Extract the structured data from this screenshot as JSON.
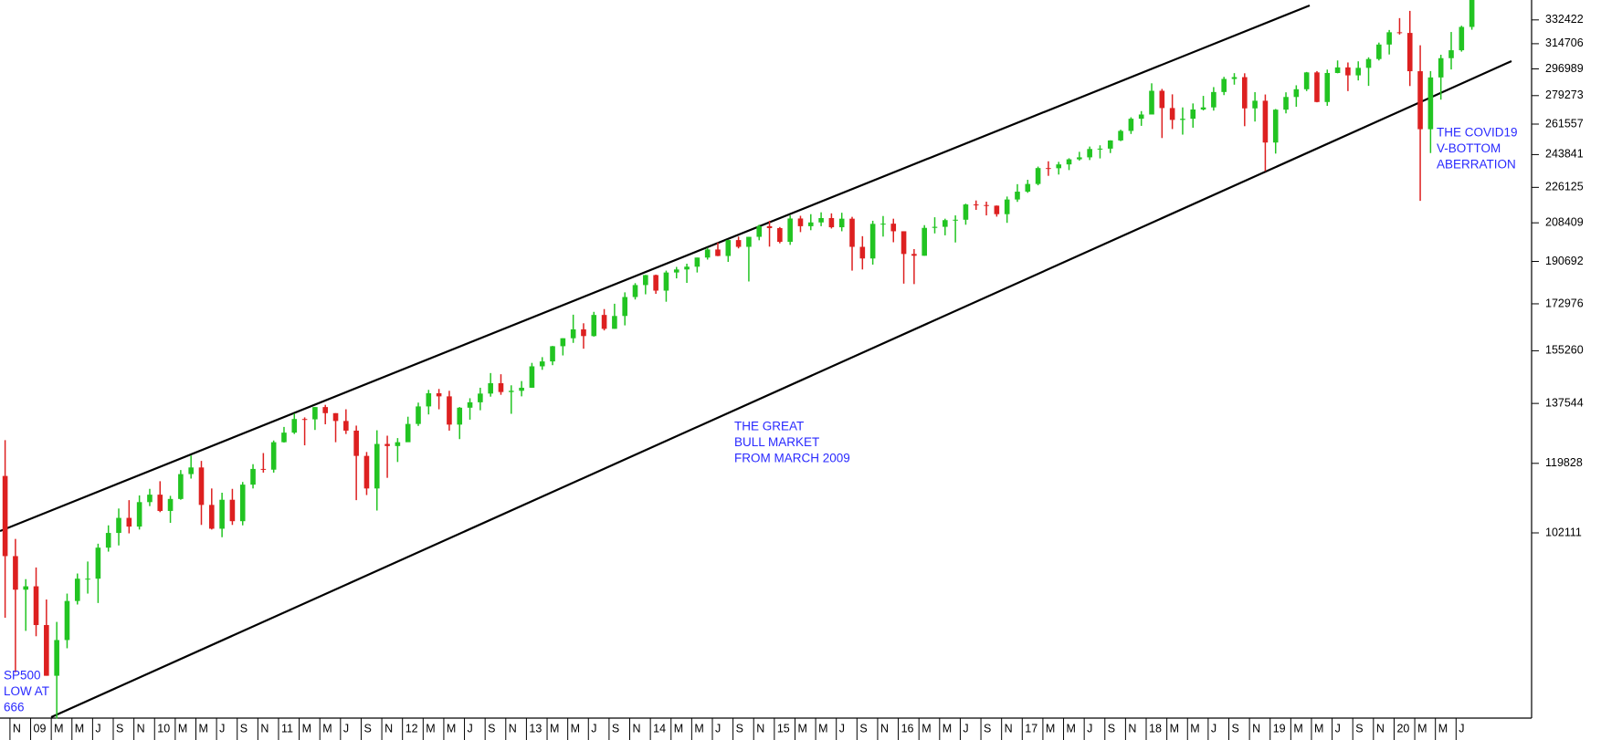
{
  "chart_data": {
    "type": "candlestick",
    "log_scale": true,
    "up_color": "#22c422",
    "down_color": "#dd2020",
    "annotation_color": "#2a2aff",
    "categories": [
      null,
      "N",
      null,
      "09",
      null,
      "M",
      null,
      "M",
      null,
      "J",
      null,
      "S",
      null,
      "N",
      null,
      "10",
      null,
      "M",
      null,
      "M",
      null,
      "J",
      null,
      "S",
      null,
      "N",
      null,
      "11",
      null,
      "M",
      null,
      "M",
      null,
      "J",
      null,
      "S",
      null,
      "N",
      null,
      "12",
      null,
      "M",
      null,
      "M",
      null,
      "J",
      null,
      "S",
      null,
      "N",
      null,
      "13",
      null,
      "M",
      null,
      "M",
      null,
      "J",
      null,
      "S",
      null,
      "N",
      null,
      "14",
      null,
      "M",
      null,
      "M",
      null,
      "J",
      null,
      "S",
      null,
      "N",
      null,
      "15",
      null,
      "M",
      null,
      "M",
      null,
      "J",
      null,
      "S",
      null,
      "N",
      null,
      "16",
      null,
      "M",
      null,
      "M",
      null,
      "J",
      null,
      "S",
      null,
      "N",
      null,
      "17",
      null,
      "M",
      null,
      "M",
      null,
      "J",
      null,
      "S",
      null,
      "N",
      null,
      "18",
      null,
      "M",
      null,
      "M",
      null,
      "J",
      null,
      "S",
      null,
      "N",
      null,
      "19",
      null,
      "M",
      null,
      "M",
      null,
      "J",
      null,
      "S",
      null,
      "N",
      null,
      "20",
      null,
      "M",
      null,
      "M",
      null,
      "J",
      null
    ],
    "open": [
      116400,
      96800,
      89600,
      90300,
      82600,
      73500,
      79800,
      87300,
      91900,
      91900,
      98700,
      102100,
      105700,
      103600,
      109600,
      111500,
      107400,
      110400,
      116900,
      118700,
      108900,
      103100,
      110200,
      104900,
      114100,
      118300,
      118100,
      125800,
      128600,
      132700,
      132600,
      136400,
      134500,
      132100,
      129200,
      121900,
      113100,
      125300,
      124700,
      125800,
      131200,
      136600,
      140800,
      139800,
      131000,
      136200,
      137900,
      140700,
      144100,
      141200,
      141600,
      142600,
      149800,
      151500,
      156900,
      159800,
      163100,
      160600,
      168600,
      163300,
      168200,
      175700,
      180600,
      184800,
      178300,
      185900,
      187200,
      188400,
      192400,
      196000,
      193100,
      200300,
      197200,
      201800,
      206800,
      205900,
      199500,
      210500,
      206800,
      208600,
      210700,
      206300,
      210400,
      197200,
      192000,
      207900,
      208000,
      204400,
      194000,
      193200,
      206000,
      206500,
      209700,
      209900,
      217400,
      217100,
      216800,
      212600,
      219900,
      223900,
      227900,
      236400,
      236300,
      238400,
      241200,
      242300,
      247000,
      247200,
      251900,
      257500,
      264800,
      267400,
      282400,
      271400,
      264100,
      264800,
      270500,
      271800,
      281600,
      290200,
      291400,
      271200,
      276000,
      250700,
      270400,
      278400,
      283400,
      294600,
      275200,
      294200,
      298000,
      292600,
      297700,
      303800,
      314100,
      323100,
      322600,
      295400,
      258500,
      291200,
      304400,
      310000,
      327100
    ],
    "high": [
      126400,
      100700,
      91800,
      94300,
      87600,
      83200,
      88800,
      93000,
      95600,
      99600,
      103900,
      108000,
      110100,
      111300,
      113000,
      115000,
      111200,
      118000,
      122000,
      120500,
      113100,
      112000,
      113000,
      114800,
      119600,
      122700,
      126300,
      130300,
      134400,
      133200,
      136400,
      137100,
      134500,
      135700,
      130700,
      123000,
      129300,
      127700,
      127000,
      133400,
      137800,
      141900,
      142200,
      141600,
      136400,
      139200,
      142600,
      147500,
      147100,
      143400,
      144800,
      151000,
      153000,
      157000,
      159800,
      168700,
      165400,
      169800,
      170900,
      173000,
      177600,
      181400,
      184900,
      185000,
      186700,
      188300,
      189700,
      192400,
      196800,
      199200,
      200500,
      201900,
      201800,
      207500,
      209400,
      206400,
      212000,
      211800,
      212600,
      213500,
      213000,
      213300,
      211300,
      202100,
      209400,
      211700,
      210400,
      204400,
      196200,
      207300,
      211100,
      210400,
      212000,
      217800,
      219400,
      218800,
      216900,
      221400,
      227800,
      230100,
      237200,
      240100,
      239800,
      241800,
      245400,
      248400,
      249100,
      252000,
      258200,
      265700,
      269500,
      287300,
      283600,
      280100,
      271800,
      274300,
      279100,
      284800,
      291600,
      294100,
      294000,
      281500,
      280000,
      270800,
      281400,
      286000,
      294900,
      295500,
      296500,
      302800,
      301400,
      302200,
      305000,
      315500,
      324800,
      333800,
      339400,
      313600,
      295500,
      306800,
      323300,
      328000,
      350000
    ],
    "low": [
      84000,
      74100,
      81500,
      80500,
      73500,
      66600,
      78300,
      86600,
      88800,
      86900,
      97800,
      99200,
      102000,
      102900,
      108600,
      107100,
      104500,
      110200,
      115700,
      104000,
      102900,
      101100,
      104000,
      103900,
      113100,
      117300,
      117300,
      125700,
      128200,
      124900,
      129400,
      131100,
      125800,
      128200,
      110100,
      111400,
      107500,
      115900,
      120200,
      125900,
      130600,
      134100,
      135700,
      129200,
      126700,
      132500,
      135400,
      139700,
      140300,
      134300,
      139800,
      142600,
      148600,
      150200,
      153600,
      158100,
      156000,
      160400,
      162700,
      163300,
      164600,
      174700,
      176800,
      177000,
      173800,
      183400,
      181500,
      185900,
      191500,
      193000,
      190500,
      196500,
      182100,
      200200,
      197300,
      198800,
      198100,
      204000,
      204900,
      206800,
      205700,
      204400,
      186700,
      187200,
      189300,
      201900,
      199300,
      181200,
      181000,
      193200,
      203400,
      202500,
      199200,
      207500,
      214700,
      212000,
      211400,
      208400,
      218700,
      223300,
      227200,
      232200,
      232900,
      235300,
      240500,
      240800,
      241700,
      244700,
      251500,
      255700,
      260500,
      268300,
      253300,
      258600,
      255300,
      259400,
      269900,
      269800,
      279600,
      286400,
      260300,
      263100,
      234700,
      244400,
      268100,
      272200,
      282200,
      275000,
      272800,
      294000,
      282200,
      289200,
      285600,
      302800,
      307000,
      321400,
      285500,
      219200,
      244700,
      276700,
      296600,
      309000,
      325000
    ],
    "close": [
      96800,
      89600,
      90300,
      82600,
      73500,
      79800,
      87300,
      91900,
      91900,
      98700,
      102100,
      105700,
      103600,
      109600,
      111500,
      107400,
      110400,
      116900,
      118700,
      108900,
      103100,
      110200,
      104900,
      114100,
      118300,
      118100,
      125800,
      128600,
      132700,
      132600,
      136400,
      134500,
      132100,
      129200,
      121900,
      113100,
      125300,
      124700,
      125800,
      131200,
      136600,
      140800,
      139800,
      131000,
      136200,
      137900,
      140700,
      144100,
      141200,
      141600,
      142600,
      149800,
      151500,
      156900,
      159800,
      163100,
      160600,
      168600,
      163300,
      168200,
      175700,
      180600,
      184800,
      178300,
      185900,
      187200,
      188400,
      192400,
      196000,
      193100,
      200300,
      197200,
      201800,
      206800,
      205900,
      199500,
      210500,
      206800,
      208600,
      210700,
      206300,
      210400,
      197200,
      192000,
      207900,
      208000,
      204400,
      194000,
      193200,
      206000,
      206500,
      209700,
      209900,
      217400,
      217100,
      216800,
      212600,
      219900,
      223900,
      227900,
      236400,
      236300,
      238400,
      241200,
      242300,
      247000,
      247200,
      251900,
      257500,
      264800,
      267400,
      282400,
      271400,
      264100,
      264800,
      270500,
      271800,
      281600,
      290200,
      291400,
      271200,
      276000,
      250700,
      270400,
      278400,
      283400,
      294600,
      275200,
      294200,
      298000,
      292600,
      297700,
      303800,
      314100,
      323100,
      322600,
      295400,
      258500,
      291200,
      304400,
      310000,
      327100,
      350000
    ],
    "ylim": [
      66679,
      348000
    ],
    "yticks": [
      332422,
      314706,
      296989,
      279273,
      261557,
      243841,
      226125,
      208409,
      190692,
      172976,
      155260,
      137544,
      119828,
      102111
    ],
    "annotations": [
      [
        "SP500",
        "LOW AT",
        "666"
      ],
      [
        "THE GREAT",
        "BULL MARKET",
        "FROM MARCH 2009"
      ],
      [
        "THE COVID19",
        "V-BOTTOM",
        "ABERRATION"
      ]
    ]
  }
}
